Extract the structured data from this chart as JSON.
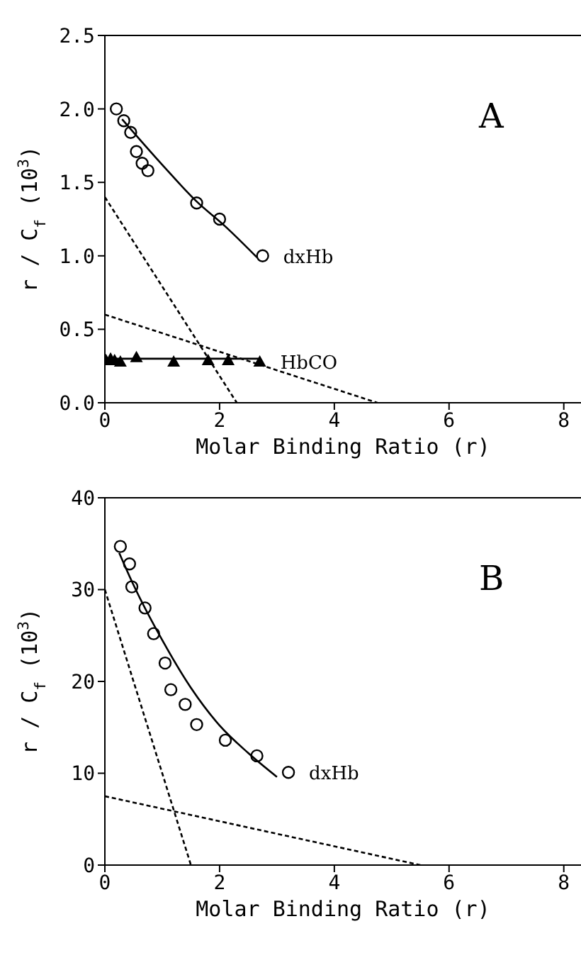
{
  "chart_data": [
    {
      "type": "scatter",
      "title": "A",
      "xlabel": "Molar Binding Ratio (r)",
      "ylabel": "r / C$_{f}$ (10$^{3}$)",
      "xlim": [
        0,
        8.3
      ],
      "xticks": [
        0,
        2,
        4,
        6,
        8
      ],
      "ylim": [
        0,
        2.5
      ],
      "yticks": [
        {
          "value": 0,
          "label": "0.0"
        },
        {
          "value": 0.5,
          "label": "0.5"
        },
        {
          "value": 1,
          "label": "1.0"
        },
        {
          "value": 1.5,
          "label": "1.5"
        },
        {
          "value": 2,
          "label": "2.0"
        },
        {
          "value": 2.5,
          "label": "2.5"
        }
      ],
      "grid": false,
      "legend": false,
      "series": [
        {
          "name": "dxHb",
          "marker": "circle",
          "color": "#000000",
          "x": [
            0.2,
            0.33,
            0.45,
            0.55,
            0.65,
            0.75,
            1.6,
            2.0,
            2.75
          ],
          "values": [
            2.0,
            1.92,
            1.84,
            1.71,
            1.63,
            1.58,
            1.36,
            1.25,
            1.0
          ]
        },
        {
          "name": "HbCO",
          "marker": "triangle",
          "color": "#000000",
          "x": [
            0.02,
            0.1,
            0.17,
            0.27,
            0.55,
            1.2,
            1.8,
            2.15,
            2.7
          ],
          "values": [
            0.29,
            0.3,
            0.29,
            0.28,
            0.31,
            0.28,
            0.29,
            0.29,
            0.28
          ]
        },
        {
          "type": "line",
          "line_style": "solid",
          "color": "#000000",
          "x": [
            0.3,
            1.0,
            1.6,
            2.1,
            2.65
          ],
          "values": [
            1.93,
            1.62,
            1.37,
            1.2,
            0.99
          ]
        },
        {
          "type": "line",
          "line_style": "solid",
          "color": "#000000",
          "x": [
            0,
            2.7
          ],
          "values": [
            0.3,
            0.3
          ]
        },
        {
          "type": "line",
          "line_style": "dashed",
          "color": "#000000",
          "x": [
            0,
            2.3
          ],
          "values": [
            1.4,
            0
          ]
        },
        {
          "type": "line",
          "line_style": "dashed",
          "color": "#000000",
          "x": [
            0,
            4.75
          ],
          "values": [
            0.6,
            0
          ]
        }
      ]
    },
    {
      "type": "scatter",
      "title": "B",
      "xlabel": "Molar Binding Ratio (r)",
      "ylabel": "r / C$_{f}$ (10$^{3}$)",
      "xlim": [
        0,
        8.3
      ],
      "xticks": [
        0,
        2,
        4,
        6,
        8
      ],
      "ylim": [
        0,
        40
      ],
      "yticks": [
        0,
        10,
        20,
        30,
        40
      ],
      "grid": false,
      "legend": false,
      "series": [
        {
          "name": "dxHb",
          "marker": "circle",
          "color": "#000000",
          "x": [
            0.27,
            0.43,
            0.47,
            0.7,
            0.85,
            1.05,
            1.15,
            1.4,
            1.6,
            2.1,
            2.65,
            3.2
          ],
          "values": [
            34.7,
            32.8,
            30.3,
            28,
            25.2,
            22,
            19.1,
            17.5,
            15.3,
            13.6,
            11.9,
            10.1
          ]
        },
        {
          "type": "line",
          "line_style": "solid",
          "color": "#000000",
          "x": [
            0.25,
            0.5,
            1.0,
            1.5,
            2.0,
            2.5,
            3.0
          ],
          "values": [
            34,
            30.5,
            24.5,
            19.3,
            15.2,
            12.2,
            9.6
          ]
        },
        {
          "type": "line",
          "line_style": "dashed",
          "color": "#000000",
          "x": [
            0,
            1.5
          ],
          "values": [
            30,
            0
          ]
        },
        {
          "type": "line",
          "line_style": "dashed",
          "color": "#000000",
          "x": [
            0,
            5.5
          ],
          "values": [
            7.5,
            0
          ]
        }
      ]
    }
  ]
}
